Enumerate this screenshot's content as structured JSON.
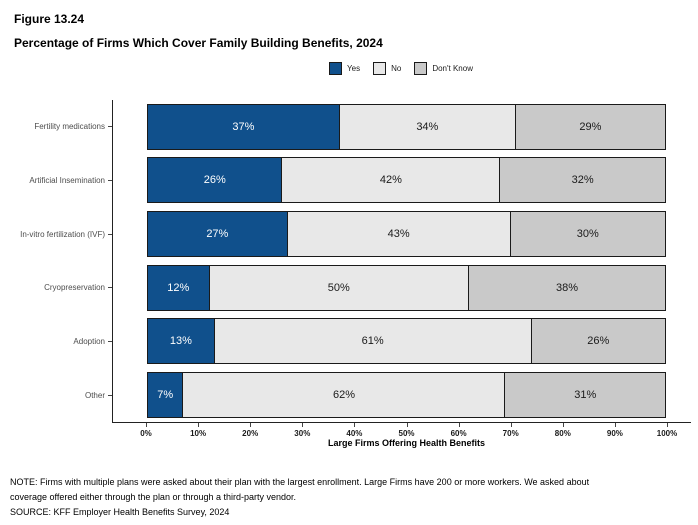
{
  "figure": {
    "label": "Figure 13.24",
    "title": "Percentage of Firms Which Cover Family Building Benefits, 2024"
  },
  "chart_data": {
    "type": "bar",
    "orientation": "horizontal",
    "stacked": true,
    "categories": [
      "Fertility medications",
      "Artificial Insemination",
      "In-vitro fertilization (IVF)",
      "Cryopreservation",
      "Adoption",
      "Other"
    ],
    "series": [
      {
        "name": "Yes",
        "color": "#10508C",
        "label_color": "#ffffff",
        "values": [
          37,
          26,
          27,
          12,
          13,
          7
        ]
      },
      {
        "name": "No",
        "color": "#E8E8E8",
        "label_color": "#1a1a1a",
        "values": [
          34,
          42,
          43,
          50,
          61,
          62
        ]
      },
      {
        "name": "Don't Know",
        "color": "#C9C9C9",
        "label_color": "#1a1a1a",
        "values": [
          29,
          32,
          30,
          38,
          26,
          31
        ]
      }
    ],
    "value_suffix": "%",
    "xlabel": "Large Firms Offering Health Benefits",
    "x_ticks": [
      "0%",
      "10%",
      "20%",
      "30%",
      "40%",
      "50%",
      "60%",
      "70%",
      "80%",
      "90%",
      "100%"
    ],
    "xlim": [
      0,
      100
    ],
    "legend_position": "top",
    "grid": false,
    "bar_border_color": "#1a1a1a"
  },
  "notes": {
    "note_line1": "NOTE: Firms with multiple plans were asked about their plan with the largest enrollment.  Large Firms have 200 or more workers.  We asked about",
    "note_line2": "coverage offered either through the plan or through a third-party vendor.",
    "source": "SOURCE: KFF Employer Health Benefits Survey, 2024"
  }
}
